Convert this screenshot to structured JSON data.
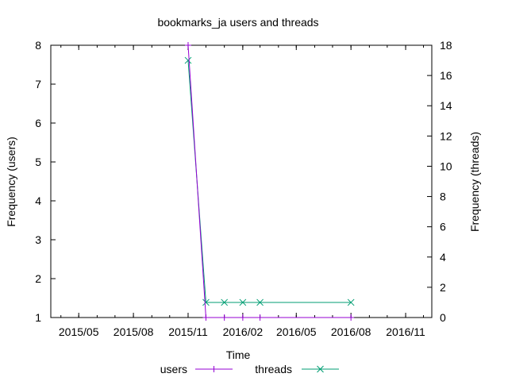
{
  "chart_data": {
    "type": "line",
    "title": "bookmarks_ja users and threads",
    "xlabel": "Time",
    "ylabel_left": "Frequency (users)",
    "ylabel_right": "Frequency (threads)",
    "x_ticks": [
      "2015/05",
      "2015/08",
      "2015/11",
      "2016/02",
      "2016/05",
      "2016/08",
      "2016/11"
    ],
    "y_left_ticks": [
      "1",
      "2",
      "3",
      "4",
      "5",
      "6",
      "7",
      "8"
    ],
    "y_right_ticks": [
      "0",
      "2",
      "4",
      "6",
      "8",
      "10",
      "12",
      "14",
      "16",
      "18"
    ],
    "xlim": [
      "2015-03-15",
      "2016-12-15"
    ],
    "ylim_left": [
      1,
      8
    ],
    "ylim_right": [
      0,
      18
    ],
    "grid": false,
    "legend_position": "bottom",
    "series": [
      {
        "name": "users",
        "axis": "left",
        "color": "#9400d3",
        "marker": "plus",
        "points": [
          {
            "x": "2015-11-01",
            "y": 8
          },
          {
            "x": "2015-12-01",
            "y": 1
          },
          {
            "x": "2016-01-01",
            "y": 1
          },
          {
            "x": "2016-02-01",
            "y": 1
          },
          {
            "x": "2016-03-01",
            "y": 1
          },
          {
            "x": "2016-08-01",
            "y": 1
          }
        ]
      },
      {
        "name": "threads",
        "axis": "right",
        "color": "#009e73",
        "marker": "cross",
        "points": [
          {
            "x": "2015-11-01",
            "y": 17
          },
          {
            "x": "2015-12-01",
            "y": 1
          },
          {
            "x": "2016-01-01",
            "y": 1
          },
          {
            "x": "2016-02-01",
            "y": 1
          },
          {
            "x": "2016-03-01",
            "y": 1
          },
          {
            "x": "2016-08-01",
            "y": 1
          }
        ]
      }
    ]
  }
}
